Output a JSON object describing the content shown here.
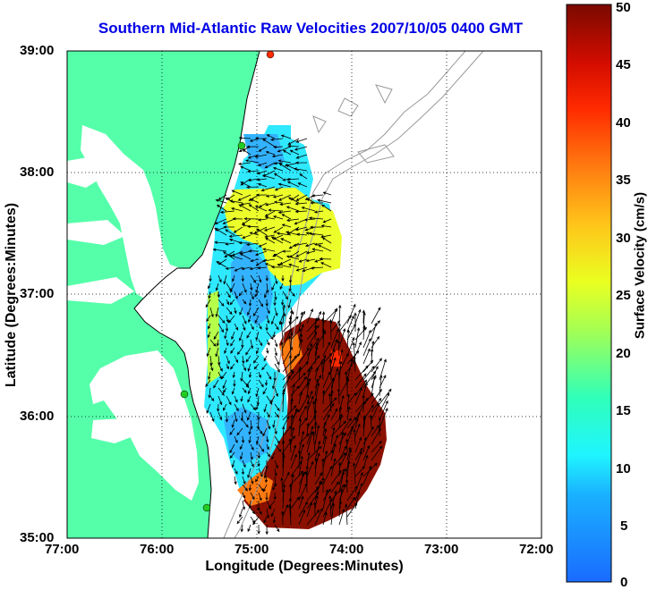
{
  "title": "Southern Mid-Atlantic Raw Velocities 2007/10/05 0400 GMT",
  "xlabel": "Longitude (Degrees:Minutes)",
  "ylabel": "Latitude (Degrees:Minutes)",
  "colorbar": {
    "label": "Surface Velocity (cm/s)",
    "range": [
      0,
      50
    ],
    "ticks": [
      "0",
      "5",
      "10",
      "15",
      "20",
      "25",
      "30",
      "35",
      "40",
      "45",
      "50"
    ]
  },
  "axes": {
    "xticks": [
      "77:00",
      "76:00",
      "75:00",
      "74:00",
      "73:00",
      "72:00"
    ],
    "yticks": [
      "39:00",
      "38:00",
      "37:00",
      "36:00",
      "35:00"
    ],
    "xlim": [
      -77,
      -72
    ],
    "ylim": [
      35,
      39
    ],
    "grid": "dotted"
  },
  "colors": {
    "title": "#0000e6",
    "land": "#55ffaa",
    "bathymetry": "#999999",
    "vectors": "#000000",
    "station_markers": "#22cc22",
    "station_marker_active": "#ff2a00"
  },
  "map": {
    "region": "Southern Mid-Atlantic Bight",
    "fields": "surface current vectors over color-shaded speed",
    "stations": [
      {
        "lon": -74.83,
        "lat": 38.92,
        "status": "active"
      },
      {
        "lon": -75.11,
        "lat": 38.23,
        "status": "normal"
      },
      {
        "lon": -75.72,
        "lat": 36.17,
        "status": "normal"
      },
      {
        "lon": -75.48,
        "lat": 35.22,
        "status": "normal"
      }
    ]
  }
}
